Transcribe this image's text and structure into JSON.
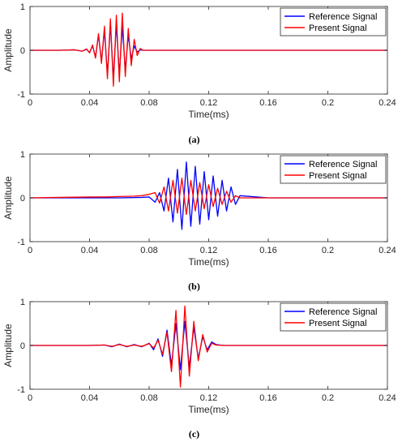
{
  "colors": {
    "reference": "#0000ff",
    "present": "#ff0000",
    "axis": "#262626"
  },
  "chart_data": [
    {
      "type": "line",
      "panel_label": "(a)",
      "xlabel": "Time(ms)",
      "ylabel": "Amplitude",
      "xlim": [
        0,
        0.24
      ],
      "ylim": [
        -1,
        1
      ],
      "x_ticks": [
        "0",
        "0.04",
        "0.08",
        "0.12",
        "0.16",
        "0.2",
        "0.24"
      ],
      "y_ticks": [
        "-1",
        "0",
        "1"
      ],
      "grid": false,
      "legend_position": "top-right",
      "series": [
        {
          "name": "Reference Signal",
          "color": "#0000ff",
          "x": [
            0,
            0.02,
            0.03,
            0.035,
            0.038,
            0.04,
            0.042,
            0.044,
            0.046,
            0.048,
            0.05,
            0.052,
            0.054,
            0.056,
            0.058,
            0.06,
            0.062,
            0.064,
            0.066,
            0.068,
            0.07,
            0.072,
            0.074,
            0.076,
            0.08,
            0.12,
            0.16,
            0.2,
            0.24
          ],
          "y": [
            0,
            0,
            0.01,
            -0.02,
            0.02,
            -0.05,
            0.1,
            -0.15,
            0.35,
            -0.25,
            0.45,
            -0.55,
            0.6,
            -0.65,
            0.6,
            -0.55,
            0.55,
            -0.45,
            0.35,
            -0.2,
            0.1,
            -0.04,
            0.01,
            0,
            0,
            0,
            0,
            0,
            0
          ]
        },
        {
          "name": "Present Signal",
          "color": "#ff0000",
          "x": [
            0,
            0.02,
            0.03,
            0.035,
            0.038,
            0.04,
            0.042,
            0.044,
            0.046,
            0.048,
            0.05,
            0.052,
            0.054,
            0.056,
            0.058,
            0.06,
            0.062,
            0.064,
            0.066,
            0.068,
            0.07,
            0.072,
            0.074,
            0.076,
            0.08,
            0.12,
            0.16,
            0.2,
            0.24
          ],
          "y": [
            0,
            0,
            0.01,
            -0.02,
            0.03,
            -0.06,
            0.12,
            -0.18,
            0.38,
            -0.3,
            0.55,
            -0.65,
            0.72,
            -0.82,
            0.8,
            -0.72,
            0.85,
            -0.6,
            0.5,
            -0.35,
            0.25,
            -0.12,
            0.04,
            0,
            0,
            0,
            0,
            0,
            0
          ]
        }
      ]
    },
    {
      "type": "line",
      "panel_label": "(b)",
      "xlabel": "Time(ms)",
      "ylabel": "Amplitude",
      "xlim": [
        0,
        0.24
      ],
      "ylim": [
        -1,
        1
      ],
      "x_ticks": [
        "0",
        "0.04",
        "0.08",
        "0.12",
        "0.16",
        "0.2",
        "0.24"
      ],
      "y_ticks": [
        "-1",
        "0",
        "1"
      ],
      "grid": false,
      "legend_position": "top-right",
      "series": [
        {
          "name": "Reference Signal",
          "color": "#0000ff",
          "x": [
            0,
            0.06,
            0.075,
            0.08,
            0.084,
            0.087,
            0.09,
            0.093,
            0.096,
            0.099,
            0.102,
            0.105,
            0.108,
            0.111,
            0.114,
            0.117,
            0.12,
            0.123,
            0.126,
            0.129,
            0.132,
            0.135,
            0.138,
            0.141,
            0.16,
            0.2,
            0.24
          ],
          "y": [
            0,
            0,
            0.01,
            0.02,
            -0.1,
            0.12,
            -0.3,
            0.45,
            -0.55,
            0.65,
            -0.72,
            0.82,
            -0.65,
            0.72,
            -0.6,
            0.6,
            -0.5,
            0.5,
            -0.42,
            0.4,
            -0.3,
            0.25,
            -0.15,
            0.05,
            0,
            0,
            0
          ]
        },
        {
          "name": "Present Signal",
          "color": "#ff0000",
          "x": [
            0,
            0.02,
            0.04,
            0.05,
            0.06,
            0.07,
            0.075,
            0.08,
            0.084,
            0.087,
            0.09,
            0.093,
            0.096,
            0.099,
            0.102,
            0.105,
            0.108,
            0.111,
            0.114,
            0.117,
            0.12,
            0.123,
            0.126,
            0.129,
            0.132,
            0.135,
            0.138,
            0.141,
            0.16,
            0.2,
            0.24
          ],
          "y": [
            0,
            0.01,
            0.02,
            0.02,
            0.03,
            0.04,
            0.05,
            0.08,
            0.12,
            -0.12,
            0.25,
            -0.3,
            0.4,
            -0.35,
            0.45,
            -0.38,
            0.4,
            -0.3,
            0.35,
            -0.25,
            0.3,
            -0.2,
            0.22,
            -0.15,
            0.15,
            -0.1,
            0.05,
            0,
            0,
            0,
            0
          ]
        }
      ]
    },
    {
      "type": "line",
      "panel_label": "(c)",
      "xlabel": "Time(ms)",
      "ylabel": "Amplitude",
      "xlim": [
        0,
        0.24
      ],
      "ylim": [
        -1,
        1
      ],
      "x_ticks": [
        "0",
        "0.04",
        "0.08",
        "0.12",
        "0.16",
        "0.2",
        "0.24"
      ],
      "y_ticks": [
        "-1",
        "0",
        "1"
      ],
      "grid": false,
      "legend_position": "top-right",
      "series": [
        {
          "name": "Reference Signal",
          "color": "#0000ff",
          "x": [
            0,
            0.04,
            0.05,
            0.055,
            0.06,
            0.065,
            0.07,
            0.075,
            0.08,
            0.083,
            0.086,
            0.089,
            0.092,
            0.095,
            0.098,
            0.101,
            0.104,
            0.107,
            0.11,
            0.113,
            0.116,
            0.119,
            0.122,
            0.125,
            0.13,
            0.16,
            0.2,
            0.24
          ],
          "y": [
            0,
            0,
            0.01,
            -0.03,
            0.03,
            -0.03,
            0.02,
            -0.03,
            0.05,
            -0.1,
            0.15,
            -0.25,
            0.35,
            -0.45,
            0.5,
            -0.55,
            0.55,
            -0.5,
            0.42,
            -0.3,
            0.2,
            -0.1,
            0.08,
            0.02,
            0,
            0,
            0,
            0
          ]
        },
        {
          "name": "Present Signal",
          "color": "#ff0000",
          "x": [
            0,
            0.04,
            0.05,
            0.055,
            0.06,
            0.065,
            0.07,
            0.075,
            0.08,
            0.083,
            0.086,
            0.089,
            0.092,
            0.095,
            0.098,
            0.101,
            0.104,
            0.107,
            0.11,
            0.113,
            0.116,
            0.119,
            0.122,
            0.125,
            0.13,
            0.16,
            0.2,
            0.24
          ],
          "y": [
            0,
            0,
            0.01,
            -0.02,
            0.02,
            -0.02,
            0.01,
            -0.02,
            0.04,
            -0.06,
            0.12,
            -0.2,
            0.3,
            -0.6,
            0.8,
            -0.95,
            0.9,
            -0.7,
            0.55,
            -0.35,
            0.25,
            -0.15,
            0.05,
            0.01,
            0,
            0,
            0,
            0
          ]
        }
      ]
    }
  ]
}
